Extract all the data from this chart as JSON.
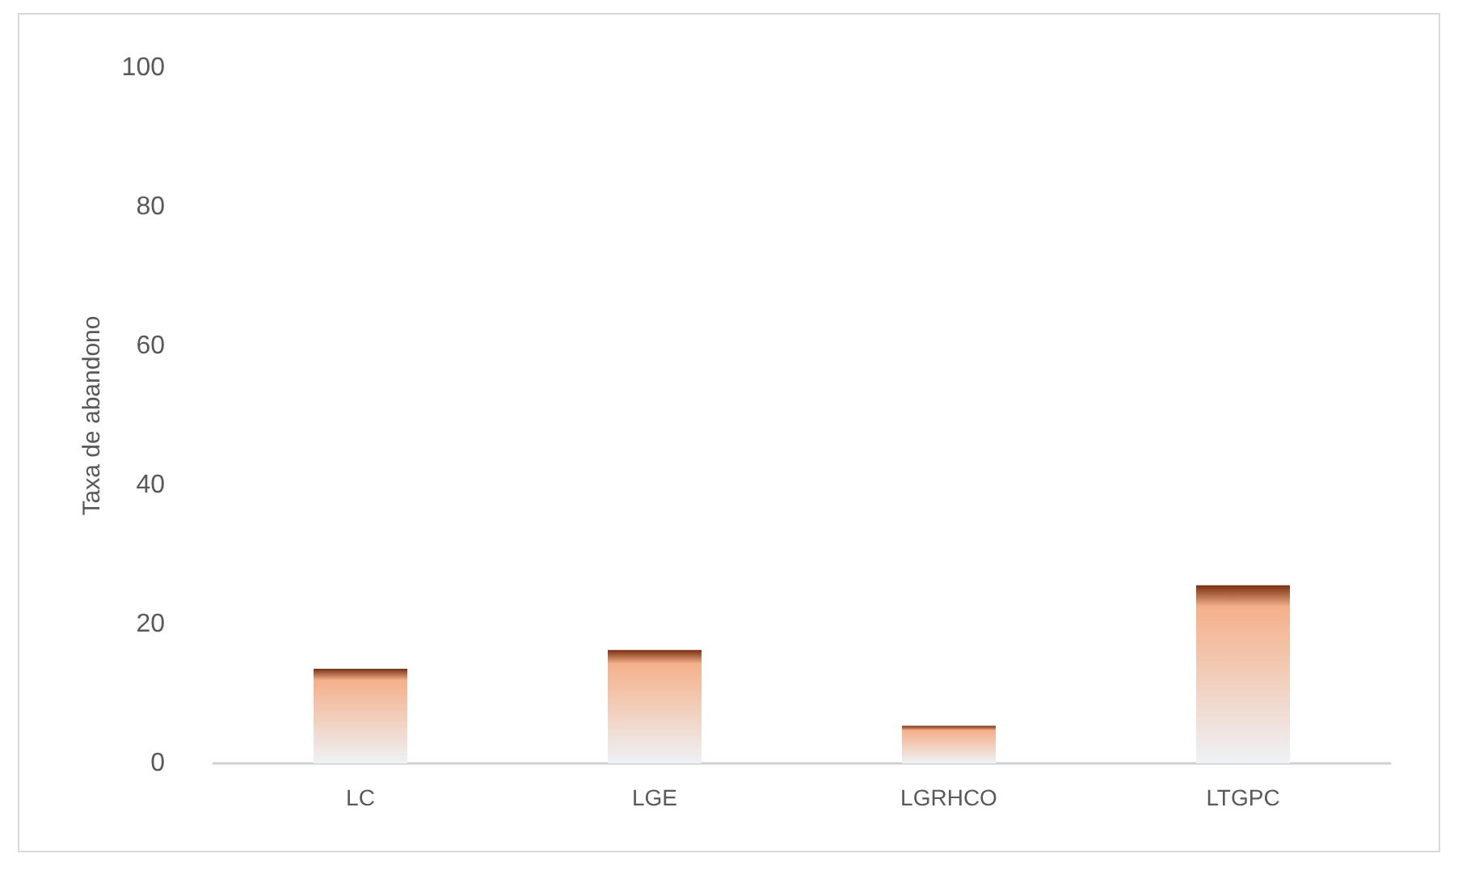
{
  "chart_data": {
    "type": "bar",
    "ylabel": "Taxa de abandono",
    "categories": [
      "LC",
      "LGE",
      "LGRHCO",
      "LTGPC"
    ],
    "values": [
      13.6,
      16.3,
      5.4,
      25.6
    ],
    "color": "#f4b08a",
    "ylim": [
      0,
      100
    ],
    "yticks": [
      0,
      20,
      40,
      60,
      80,
      100
    ],
    "grid": false
  }
}
